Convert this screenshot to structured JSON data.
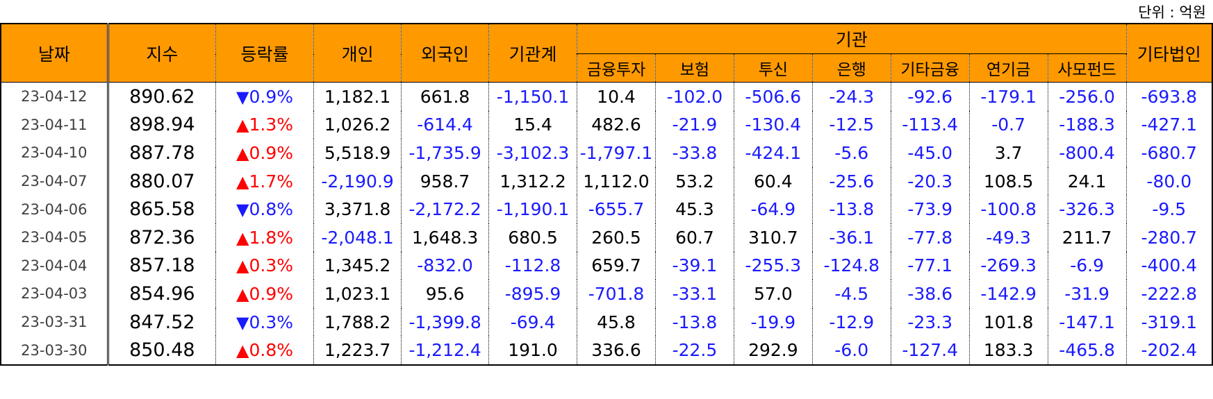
{
  "unit_label": "단위 : 억원",
  "headers": {
    "date": "날짜",
    "index": "지수",
    "change": "등락률",
    "individual": "개인",
    "foreign": "외국인",
    "institution_total": "기관계",
    "institution_group": "기관",
    "financial_invest": "금융투자",
    "insurance": "보험",
    "trust": "투신",
    "bank": "은행",
    "other_finance": "기타금융",
    "pension": "연기금",
    "private_fund": "사모펀드",
    "other_corp": "기타법인"
  },
  "arrows": {
    "up": "▲",
    "down": "▼"
  },
  "colors": {
    "header_bg": "#ff9900",
    "negative": "#1a1aff",
    "up": "#ff0000",
    "down": "#1a1aff"
  },
  "rows": [
    {
      "date": "23-04-12",
      "index": "890.62",
      "dir": "down",
      "change": "0.9%",
      "individual": "1,182.1",
      "foreign": "661.8",
      "inst_total": "-1,150.1",
      "fin": "10.4",
      "ins": "-102.0",
      "trust": "-506.6",
      "bank": "-24.3",
      "other_fin": "-92.6",
      "pension": "-179.1",
      "pef": "-256.0",
      "other_corp": "-693.8"
    },
    {
      "date": "23-04-11",
      "index": "898.94",
      "dir": "up",
      "change": "1.3%",
      "individual": "1,026.2",
      "foreign": "-614.4",
      "inst_total": "15.4",
      "fin": "482.6",
      "ins": "-21.9",
      "trust": "-130.4",
      "bank": "-12.5",
      "other_fin": "-113.4",
      "pension": "-0.7",
      "pef": "-188.3",
      "other_corp": "-427.1"
    },
    {
      "date": "23-04-10",
      "index": "887.78",
      "dir": "up",
      "change": "0.9%",
      "individual": "5,518.9",
      "foreign": "-1,735.9",
      "inst_total": "-3,102.3",
      "fin": "-1,797.1",
      "ins": "-33.8",
      "trust": "-424.1",
      "bank": "-5.6",
      "other_fin": "-45.0",
      "pension": "3.7",
      "pef": "-800.4",
      "other_corp": "-680.7"
    },
    {
      "date": "23-04-07",
      "index": "880.07",
      "dir": "up",
      "change": "1.7%",
      "individual": "-2,190.9",
      "foreign": "958.7",
      "inst_total": "1,312.2",
      "fin": "1,112.0",
      "ins": "53.2",
      "trust": "60.4",
      "bank": "-25.6",
      "other_fin": "-20.3",
      "pension": "108.5",
      "pef": "24.1",
      "other_corp": "-80.0"
    },
    {
      "date": "23-04-06",
      "index": "865.58",
      "dir": "down",
      "change": "0.8%",
      "individual": "3,371.8",
      "foreign": "-2,172.2",
      "inst_total": "-1,190.1",
      "fin": "-655.7",
      "ins": "45.3",
      "trust": "-64.9",
      "bank": "-13.8",
      "other_fin": "-73.9",
      "pension": "-100.8",
      "pef": "-326.3",
      "other_corp": "-9.5"
    },
    {
      "date": "23-04-05",
      "index": "872.36",
      "dir": "up",
      "change": "1.8%",
      "individual": "-2,048.1",
      "foreign": "1,648.3",
      "inst_total": "680.5",
      "fin": "260.5",
      "ins": "60.7",
      "trust": "310.7",
      "bank": "-36.1",
      "other_fin": "-77.8",
      "pension": "-49.3",
      "pef": "211.7",
      "other_corp": "-280.7"
    },
    {
      "date": "23-04-04",
      "index": "857.18",
      "dir": "up",
      "change": "0.3%",
      "individual": "1,345.2",
      "foreign": "-832.0",
      "inst_total": "-112.8",
      "fin": "659.7",
      "ins": "-39.1",
      "trust": "-255.3",
      "bank": "-124.8",
      "other_fin": "-77.1",
      "pension": "-269.3",
      "pef": "-6.9",
      "other_corp": "-400.4"
    },
    {
      "date": "23-04-03",
      "index": "854.96",
      "dir": "up",
      "change": "0.9%",
      "individual": "1,023.1",
      "foreign": "95.6",
      "inst_total": "-895.9",
      "fin": "-701.8",
      "ins": "-33.1",
      "trust": "57.0",
      "bank": "-4.5",
      "other_fin": "-38.6",
      "pension": "-142.9",
      "pef": "-31.9",
      "other_corp": "-222.8"
    },
    {
      "date": "23-03-31",
      "index": "847.52",
      "dir": "down",
      "change": "0.3%",
      "individual": "1,788.2",
      "foreign": "-1,399.8",
      "inst_total": "-69.4",
      "fin": "45.8",
      "ins": "-13.8",
      "trust": "-19.9",
      "bank": "-12.9",
      "other_fin": "-23.3",
      "pension": "101.8",
      "pef": "-147.1",
      "other_corp": "-319.1"
    },
    {
      "date": "23-03-30",
      "index": "850.48",
      "dir": "up",
      "change": "0.8%",
      "individual": "1,223.7",
      "foreign": "-1,212.4",
      "inst_total": "191.0",
      "fin": "336.6",
      "ins": "-22.5",
      "trust": "292.9",
      "bank": "-6.0",
      "other_fin": "-127.4",
      "pension": "183.3",
      "pef": "-465.8",
      "other_corp": "-202.4"
    }
  ]
}
